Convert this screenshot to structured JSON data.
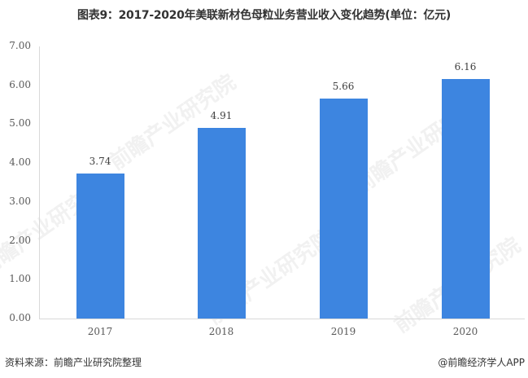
{
  "title": "图表9：2017-2020年美联新材色母粒业务营业收入变化趋势(单位：亿元)",
  "footer": {
    "source": "资料来源：前瞻产业研究院整理",
    "credit": "@前瞻经济学人APP"
  },
  "watermark": "前瞻产业研究院",
  "colors": {
    "bar": "#3d85e0",
    "axis": "#d9d9d9",
    "text": "#595959"
  },
  "chart_data": {
    "type": "bar",
    "title": "图表9：2017-2020年美联新材色母粒业务营业收入变化趋势(单位：亿元)",
    "xlabel": "",
    "ylabel": "",
    "unit": "亿元",
    "categories": [
      "2017",
      "2018",
      "2019",
      "2020"
    ],
    "values": [
      3.74,
      4.91,
      5.66,
      6.16
    ],
    "value_labels": [
      "3.74",
      "4.91",
      "5.66",
      "6.16"
    ],
    "ylim": [
      0,
      7
    ],
    "yticks": [
      "0.00",
      "1.00",
      "2.00",
      "3.00",
      "4.00",
      "5.00",
      "6.00",
      "7.00"
    ],
    "grid": false,
    "legend": null
  }
}
